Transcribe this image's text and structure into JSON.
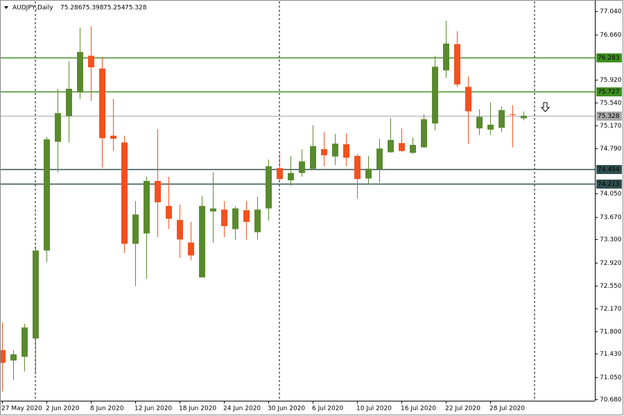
{
  "chart_data": {
    "type": "candlestick",
    "symbol": "AUDJPY,Daily",
    "categories": [
      "27 May 2020",
      null,
      null,
      null,
      "2 Jun 2020",
      null,
      null,
      null,
      "8 Jun 2020",
      null,
      null,
      null,
      "12 Jun 2020",
      null,
      null,
      null,
      "18 Jun 2020",
      null,
      null,
      null,
      "24 Jun 2020",
      null,
      null,
      null,
      "30 Jun 2020",
      null,
      null,
      null,
      "6 Jul 2020",
      null,
      null,
      null,
      "10 Jul 2020",
      null,
      null,
      null,
      "16 Jul 2020",
      null,
      null,
      null,
      "22 Jul 2020",
      null,
      null,
      null,
      "28 Jul 2020",
      null,
      null,
      null
    ],
    "open": [
      71.49,
      71.32,
      71.38,
      71.68,
      73.12,
      74.9,
      75.32,
      75.71,
      76.31,
      76.1,
      75.0,
      74.89,
      73.23,
      73.4,
      74.26,
      73.85,
      73.62,
      73.25,
      72.68,
      73.76,
      73.79,
      73.47,
      73.78,
      73.42,
      73.81,
      74.47,
      74.27,
      74.39,
      74.46,
      74.78,
      74.66,
      74.86,
      74.67,
      74.3,
      74.45,
      74.73,
      74.88,
      74.72,
      74.81,
      75.2,
      76.07,
      76.5,
      75.8,
      75.12,
      75.1,
      75.13,
      75.35,
      75.286
    ],
    "high": [
      71.94,
      71.49,
      71.92,
      73.19,
      74.98,
      75.77,
      76.22,
      76.77,
      76.79,
      76.29,
      75.6,
      75.0,
      73.93,
      74.33,
      75.11,
      74.33,
      73.87,
      73.59,
      74.01,
      74.4,
      73.93,
      73.84,
      73.93,
      74.0,
      74.61,
      74.7,
      74.67,
      74.78,
      75.17,
      75.06,
      75.03,
      75.04,
      74.7,
      74.67,
      74.95,
      75.29,
      75.12,
      74.97,
      75.35,
      76.31,
      76.88,
      76.71,
      75.97,
      75.43,
      75.55,
      75.48,
      75.5,
      75.398
    ],
    "low": [
      70.81,
      71.0,
      71.14,
      71.09,
      72.93,
      74.4,
      74.89,
      75.6,
      75.57,
      74.48,
      74.75,
      73.08,
      72.54,
      72.66,
      73.34,
      73.47,
      73.0,
      72.96,
      72.68,
      73.25,
      73.34,
      73.3,
      73.3,
      73.3,
      73.61,
      74.25,
      74.18,
      74.33,
      74.44,
      74.5,
      74.52,
      74.5,
      73.97,
      74.21,
      74.23,
      74.72,
      74.73,
      74.7,
      74.8,
      75.09,
      75.95,
      75.8,
      74.87,
      75.01,
      75.01,
      75.06,
      74.81,
      75.254
    ],
    "close": [
      71.28,
      71.42,
      71.86,
      73.12,
      74.94,
      75.37,
      75.77,
      76.37,
      76.12,
      74.96,
      74.95,
      73.23,
      73.71,
      74.26,
      73.91,
      73.64,
      73.3,
      73.04,
      73.85,
      73.81,
      73.52,
      73.81,
      73.59,
      73.79,
      74.5,
      74.29,
      74.39,
      74.58,
      74.83,
      74.68,
      74.87,
      74.64,
      74.29,
      74.46,
      74.79,
      74.93,
      74.75,
      74.85,
      75.27,
      76.13,
      76.51,
      75.84,
      75.4,
      75.31,
      75.18,
      75.42,
      75.34,
      75.328
    ],
    "up_color": "#5a8a2e",
    "down_color": "#f4511e",
    "ylim": [
      70.66,
      77.2
    ],
    "yticks": [
      {
        "value": 77.04,
        "label": "77.040"
      },
      {
        "value": 76.66,
        "label": "76.660"
      },
      {
        "value": 75.92,
        "label": "75.920"
      },
      {
        "value": 75.54,
        "label": "75.540"
      },
      {
        "value": 75.17,
        "label": "75.170"
      },
      {
        "value": 74.79,
        "label": "74.790"
      },
      {
        "value": 74.05,
        "label": "74.050"
      },
      {
        "value": 73.67,
        "label": "73.670"
      },
      {
        "value": 73.3,
        "label": "73.300"
      },
      {
        "value": 72.92,
        "label": "72.920"
      },
      {
        "value": 72.55,
        "label": "72.550"
      },
      {
        "value": 72.17,
        "label": "72.170"
      },
      {
        "value": 71.8,
        "label": "71.800"
      },
      {
        "value": 71.43,
        "label": "71.430"
      },
      {
        "value": 71.05,
        "label": "71.050"
      },
      {
        "value": 70.68,
        "label": "70.680"
      }
    ],
    "levels": [
      {
        "value": 76.283,
        "color": "#3f8f22",
        "text_color": "#ffffff"
      },
      {
        "value": 75.727,
        "color": "#3f8f22",
        "text_color": "#ffffff"
      },
      {
        "value": 75.328,
        "color": "#a8a8a8",
        "text_color": "#000000"
      },
      {
        "value": 74.454,
        "color": "#2f4f4f",
        "text_color": "#ffffff"
      },
      {
        "value": 74.213,
        "color": "#2f4f4f",
        "text_color": "#ffffff"
      }
    ]
  }
}
